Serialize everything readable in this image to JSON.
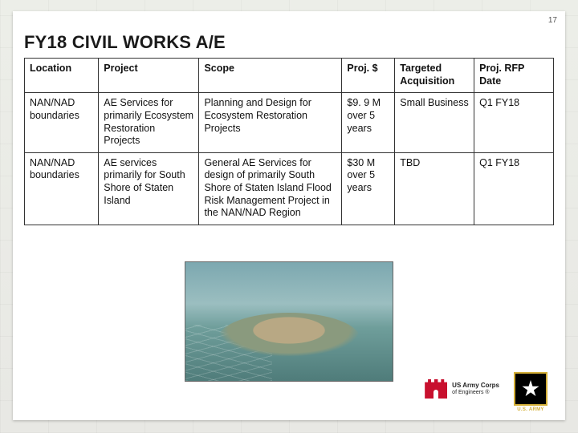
{
  "page_number": "17",
  "title": "FY18 CIVIL WORKS A/E",
  "table": {
    "columns": [
      "Location",
      "Project",
      "Scope",
      "Proj. $",
      "Targeted Acquisition",
      "Proj. RFP Date"
    ],
    "rows": [
      {
        "location": "NAN/NAD boundaries",
        "project": "AE Services for primarily Ecosystem Restoration Projects",
        "scope": "Planning and Design for Ecosystem Restoration Projects",
        "cost": "$9. 9 M over 5 years",
        "acquisition": "Small Business",
        "rfp": "Q1 FY18"
      },
      {
        "location": "NAN/NAD boundaries",
        "project": "AE services primarily for South Shore of Staten Island",
        "scope": "General AE Services for design of primarily South Shore of Staten Island Flood Risk Management Project in the NAN/NAD Region",
        "cost": "$30 M over 5 years",
        "acquisition": "TBD",
        "rfp": "Q1 FY18"
      }
    ],
    "border_color": "#333333",
    "header_bg": "#ffffff",
    "font_size_pt": 9.5
  },
  "logos": {
    "usace": {
      "line1": "US Army Corps",
      "line2": "of Engineers ®",
      "castle_color": "#c8102e"
    },
    "army": {
      "label": "U.S. ARMY",
      "bg": "#000000",
      "border": "#d4af37",
      "star": "#ffffff"
    }
  },
  "background": "#e8e8e4",
  "slide_bg": "#ffffff"
}
